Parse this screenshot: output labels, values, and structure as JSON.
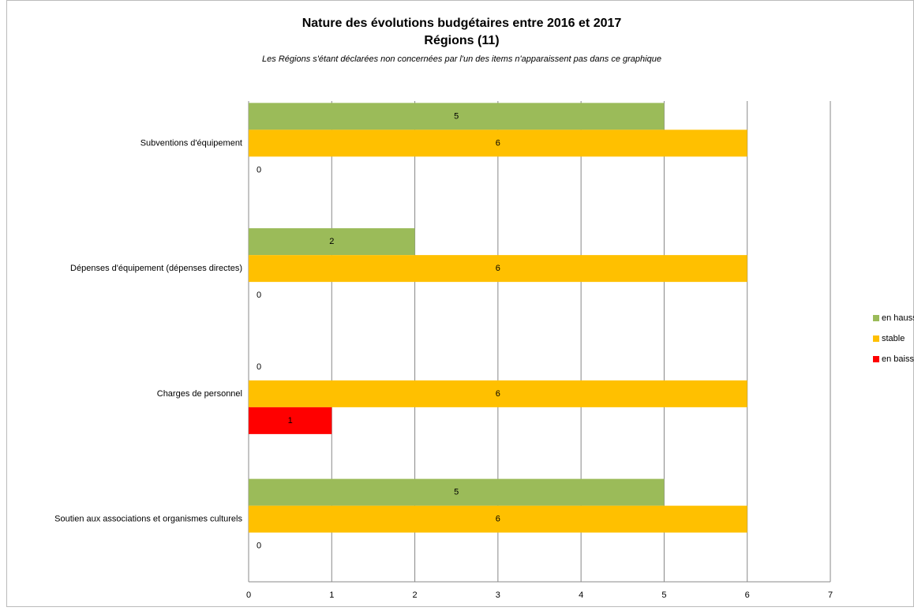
{
  "chart_data": {
    "type": "hbar",
    "title": "Nature des évolutions budgétaires entre 2016 et 2017",
    "subtitle": "Régions (11)",
    "note": "Les Régions s'étant déclarées non concernées par l'un des items n'apparaissent pas dans ce graphique",
    "categories": [
      "Subventions d'équipement",
      "Dépenses d'équipement (dépenses directes)",
      "Charges de personnel",
      "Soutien aux associations et organismes culturels"
    ],
    "series": [
      {
        "name": "en hausse",
        "color": "#9bbb59",
        "values": [
          5,
          2,
          0,
          5
        ]
      },
      {
        "name": "stable",
        "color": "#ffc000",
        "values": [
          6,
          6,
          6,
          6
        ]
      },
      {
        "name": "en baisse",
        "color": "#ff0000",
        "values": [
          0,
          0,
          1,
          0
        ]
      }
    ],
    "xlim": [
      0,
      7
    ],
    "xticks": [
      0,
      1,
      2,
      3,
      4,
      5,
      6,
      7
    ],
    "grid": true,
    "legend": "right"
  }
}
